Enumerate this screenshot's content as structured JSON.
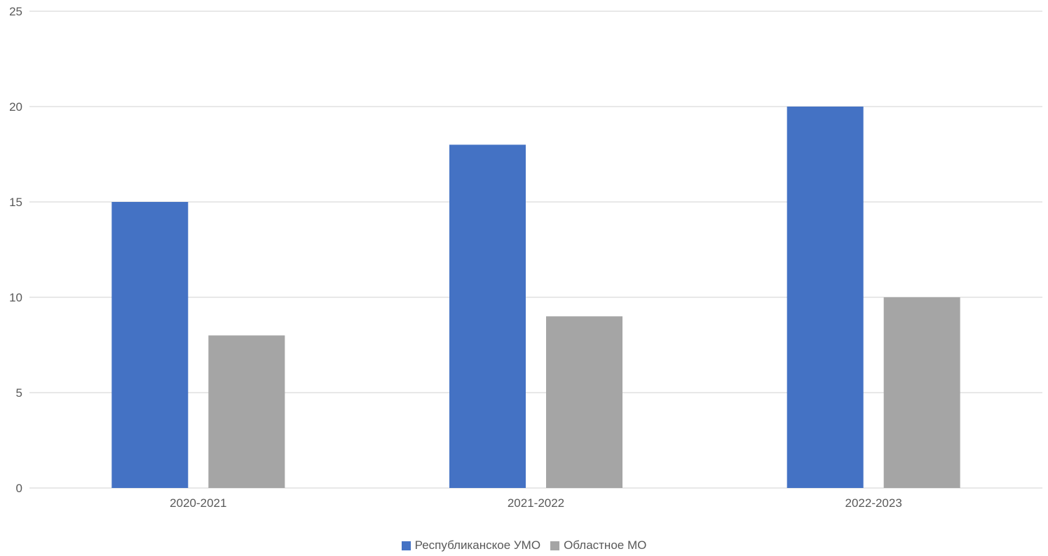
{
  "chart_data": {
    "type": "bar",
    "categories": [
      "2020-2021",
      "2021-2022",
      "2022-2023"
    ],
    "series": [
      {
        "name": "Республиканское УМО",
        "values": [
          15,
          18,
          20
        ],
        "color": "#4472C4"
      },
      {
        "name": "Областное МО",
        "values": [
          8,
          9,
          10
        ],
        "color": "#A5A5A5"
      }
    ],
    "title": "",
    "xlabel": "",
    "ylabel": "",
    "ylim": [
      0,
      25
    ],
    "yticks": [
      0,
      5,
      10,
      15,
      20,
      25
    ],
    "grid": true,
    "gridline_color": "#D9D9D9",
    "legend_position": "bottom"
  }
}
